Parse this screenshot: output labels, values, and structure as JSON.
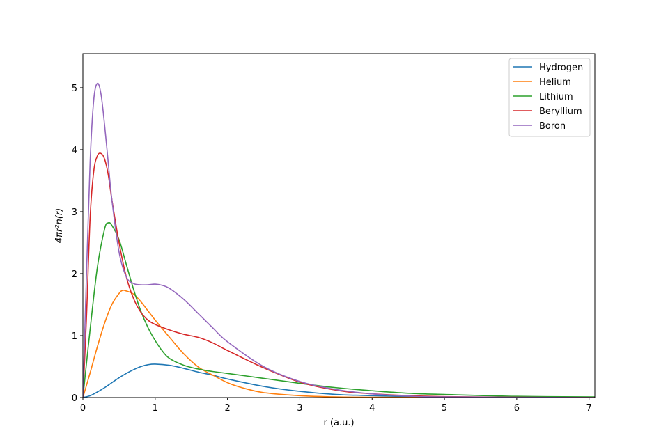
{
  "chart_data": {
    "type": "line",
    "xlabel": "r (a.u.)",
    "ylabel": "4πr²n(r)",
    "xlim": [
      0,
      7.08
    ],
    "ylim": [
      0,
      5.55
    ],
    "xticks": [
      0,
      1,
      2,
      3,
      4,
      5,
      6,
      7
    ],
    "xtick_labels": [
      "0",
      "1",
      "2",
      "3",
      "4",
      "5",
      "6",
      "7"
    ],
    "yticks": [
      0,
      1,
      2,
      3,
      4,
      5
    ],
    "ytick_labels": [
      "0",
      "1",
      "2",
      "3",
      "4",
      "5"
    ],
    "grid": false,
    "legend_position": "top-right",
    "series": [
      {
        "name": "Hydrogen",
        "color": "#1f77b4",
        "x": [
          0,
          0.1,
          0.2,
          0.3,
          0.4,
          0.5,
          0.6,
          0.7,
          0.8,
          0.9,
          1.0,
          1.2,
          1.4,
          1.6,
          1.8,
          2.0,
          2.5,
          3.0,
          3.5,
          4.0,
          4.5,
          5.0,
          6.0,
          7.08
        ],
        "y": [
          0,
          0.03,
          0.09,
          0.16,
          0.24,
          0.32,
          0.39,
          0.45,
          0.5,
          0.53,
          0.54,
          0.52,
          0.47,
          0.41,
          0.36,
          0.3,
          0.18,
          0.1,
          0.05,
          0.03,
          0.015,
          0.008,
          0.002,
          0.0
        ]
      },
      {
        "name": "Helium",
        "color": "#ff7f0e",
        "x": [
          0,
          0.1,
          0.2,
          0.3,
          0.4,
          0.5,
          0.55,
          0.6,
          0.7,
          0.8,
          0.9,
          1.0,
          1.2,
          1.4,
          1.6,
          1.8,
          2.0,
          2.2,
          2.5,
          3.0,
          3.5,
          4.0,
          5.0,
          7.08
        ],
        "y": [
          0,
          0.4,
          0.82,
          1.2,
          1.5,
          1.68,
          1.73,
          1.72,
          1.67,
          1.55,
          1.4,
          1.25,
          0.97,
          0.7,
          0.49,
          0.36,
          0.24,
          0.16,
          0.08,
          0.03,
          0.01,
          0.005,
          0.001,
          0.0
        ]
      },
      {
        "name": "Lithium",
        "color": "#2ca02c",
        "x": [
          0,
          0.1,
          0.2,
          0.3,
          0.35,
          0.4,
          0.5,
          0.6,
          0.7,
          0.8,
          0.9,
          1.0,
          1.1,
          1.2,
          1.4,
          1.6,
          1.8,
          2.0,
          2.5,
          3.0,
          3.5,
          4.0,
          4.5,
          5.0,
          6.0,
          7.08
        ],
        "y": [
          0,
          1.1,
          2.1,
          2.72,
          2.82,
          2.78,
          2.55,
          2.15,
          1.75,
          1.4,
          1.13,
          0.92,
          0.75,
          0.63,
          0.52,
          0.46,
          0.42,
          0.39,
          0.31,
          0.23,
          0.16,
          0.11,
          0.07,
          0.05,
          0.02,
          0.01
        ]
      },
      {
        "name": "Beryllium",
        "color": "#d62728",
        "x": [
          0,
          0.05,
          0.1,
          0.15,
          0.2,
          0.25,
          0.3,
          0.35,
          0.4,
          0.5,
          0.6,
          0.7,
          0.8,
          0.9,
          1.0,
          1.2,
          1.4,
          1.6,
          1.8,
          2.0,
          2.5,
          3.0,
          3.5,
          4.0,
          5.0,
          7.08
        ],
        "y": [
          0,
          1.3,
          2.9,
          3.65,
          3.9,
          3.94,
          3.85,
          3.6,
          3.2,
          2.5,
          1.95,
          1.6,
          1.38,
          1.25,
          1.18,
          1.09,
          1.02,
          0.97,
          0.88,
          0.76,
          0.48,
          0.25,
          0.12,
          0.06,
          0.015,
          0.0
        ]
      },
      {
        "name": "Boron",
        "color": "#9467bd",
        "x": [
          0,
          0.05,
          0.1,
          0.15,
          0.2,
          0.25,
          0.3,
          0.35,
          0.4,
          0.5,
          0.6,
          0.7,
          0.8,
          0.9,
          1.0,
          1.1,
          1.2,
          1.4,
          1.6,
          1.8,
          2.0,
          2.5,
          3.0,
          3.5,
          4.0,
          4.5,
          5.0,
          7.08
        ],
        "y": [
          0,
          2.0,
          3.8,
          4.8,
          5.07,
          4.9,
          4.4,
          3.8,
          3.2,
          2.35,
          1.95,
          1.84,
          1.82,
          1.82,
          1.83,
          1.81,
          1.76,
          1.58,
          1.35,
          1.12,
          0.9,
          0.5,
          0.26,
          0.13,
          0.06,
          0.025,
          0.01,
          0.0
        ]
      }
    ]
  }
}
